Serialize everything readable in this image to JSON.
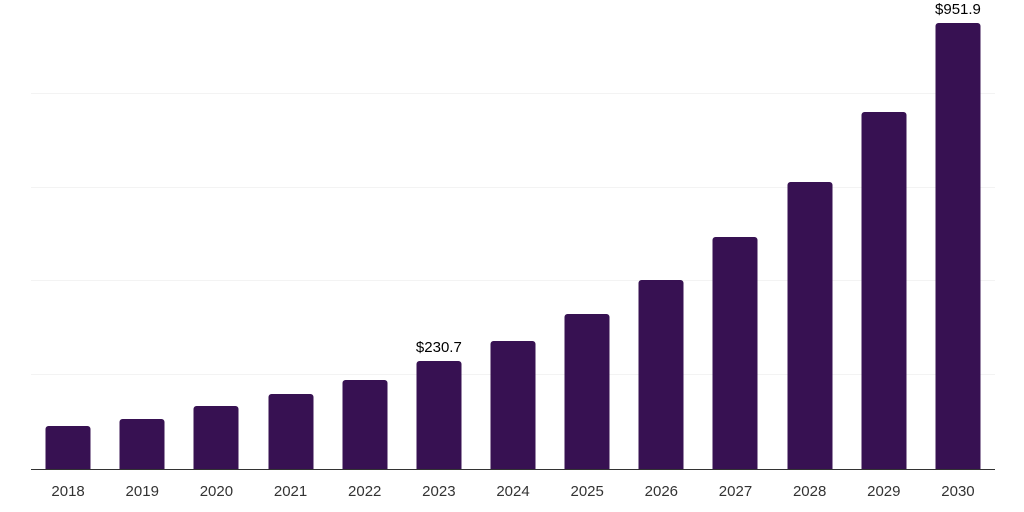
{
  "chart_data": {
    "type": "bar",
    "title": "",
    "xlabel": "",
    "ylabel": "",
    "categories": [
      "2018",
      "2019",
      "2020",
      "2021",
      "2022",
      "2023",
      "2024",
      "2025",
      "2026",
      "2027",
      "2028",
      "2029",
      "2030"
    ],
    "values": [
      92,
      107,
      135,
      161,
      190,
      230.7,
      274,
      331,
      402,
      494,
      613,
      762,
      951.9
    ],
    "bar_labels": [
      "",
      "",
      "",
      "",
      "",
      "$230.7",
      "",
      "",
      "",
      "",
      "",
      "",
      "$951.9"
    ],
    "ylim": [
      0,
      1000
    ],
    "y_gridline_step": 200,
    "y_axis_labels_visible": false,
    "legend": "none",
    "grid": "horizontal",
    "colors": {
      "background": "#ffffff",
      "bar": "#371152",
      "axis_line": "#333333",
      "gridline": "#f3f3f3",
      "bar_label_text": "#000000",
      "tick_label_text": "#333333"
    }
  }
}
